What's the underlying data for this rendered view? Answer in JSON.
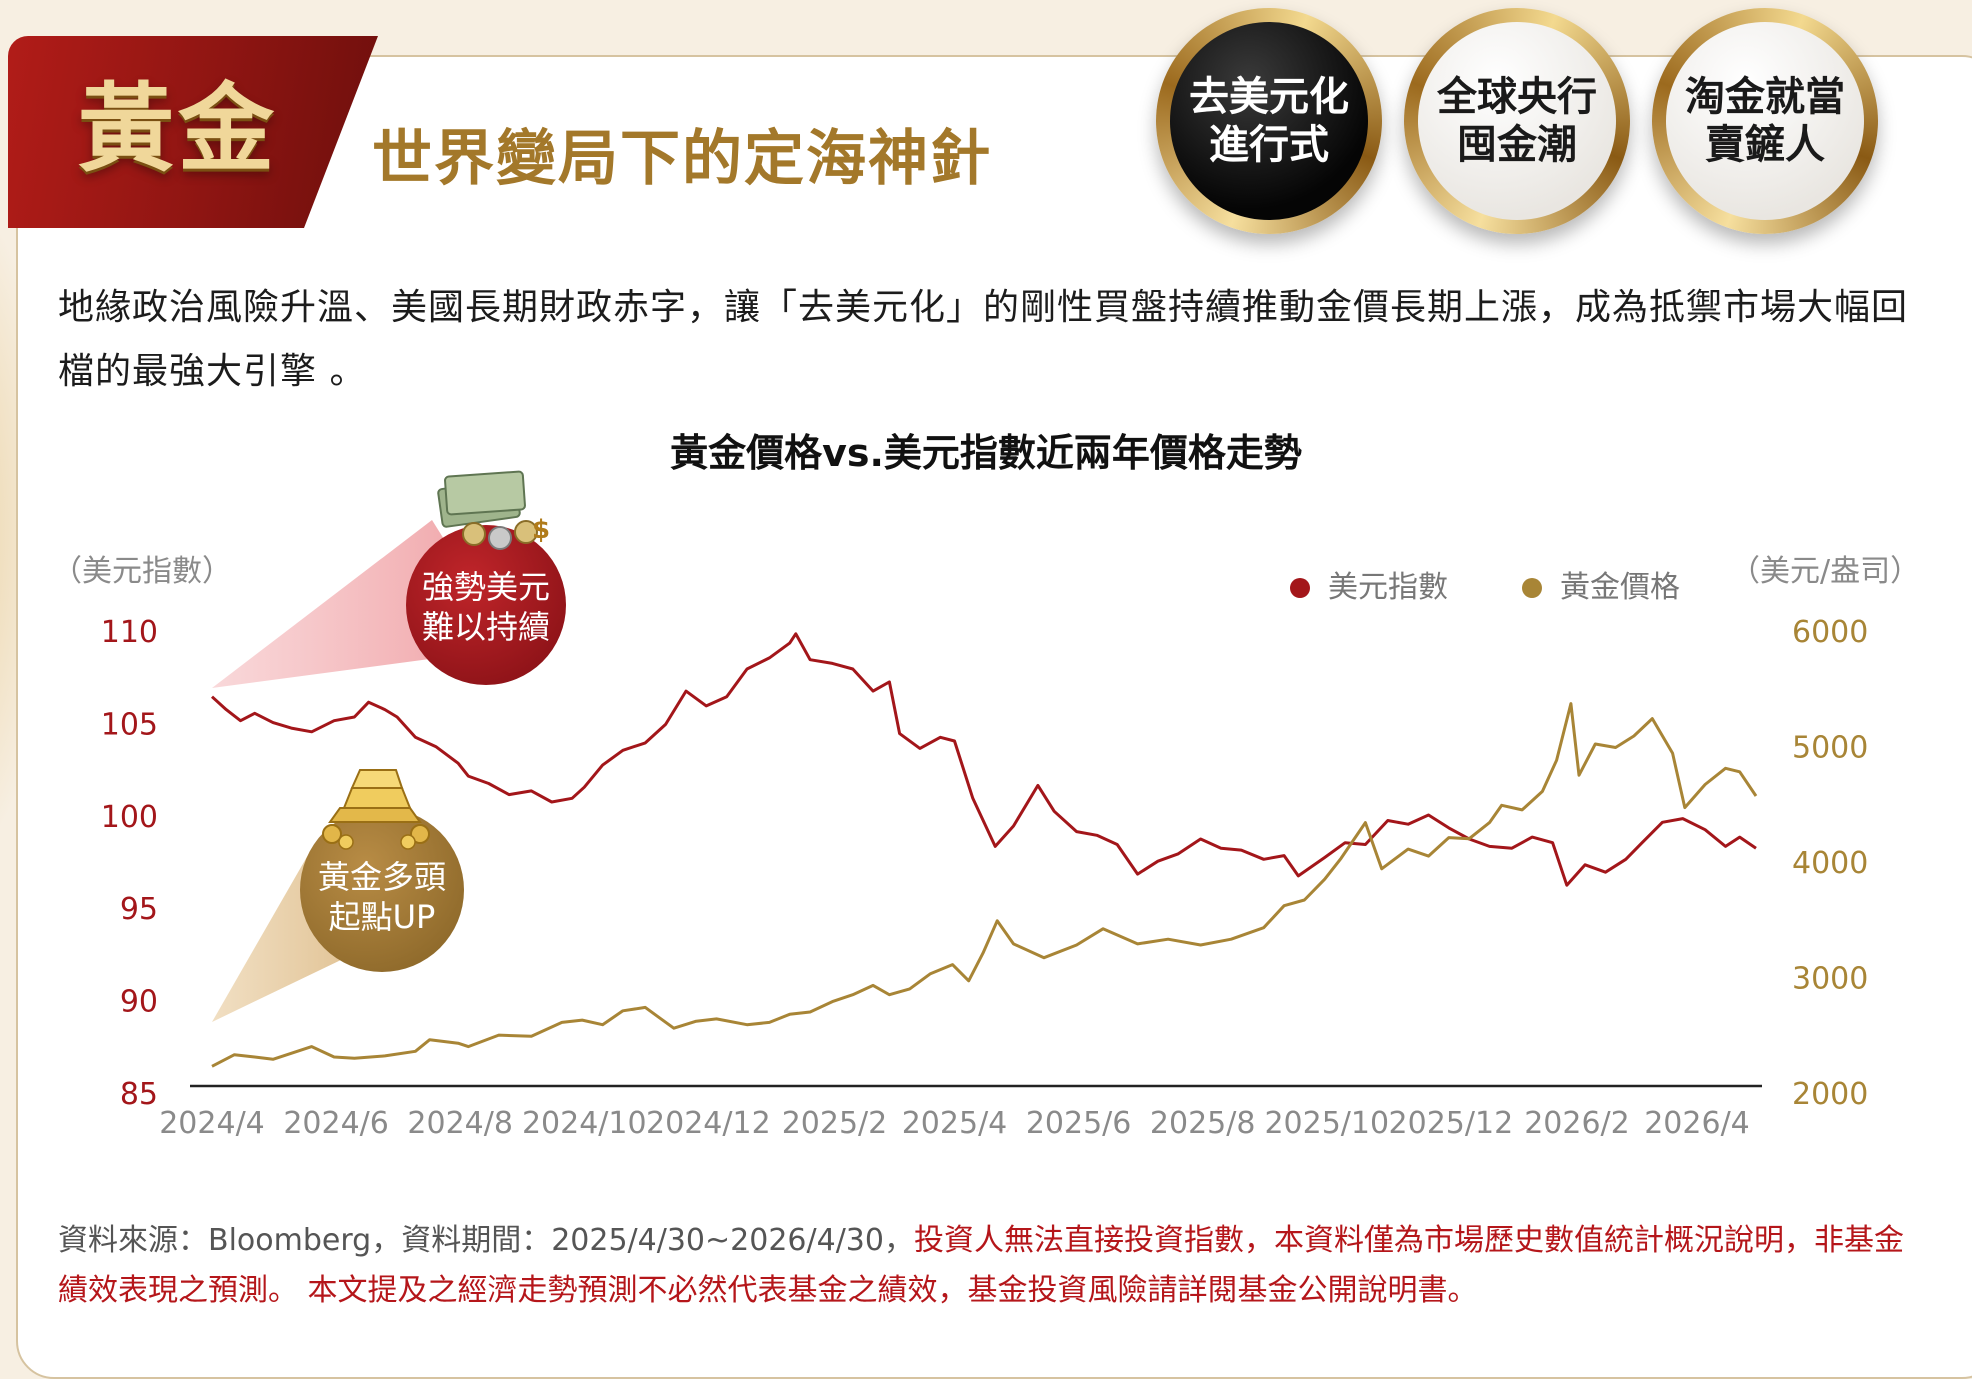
{
  "header": {
    "tab_title": "黃金",
    "subtitle": "世界變局下的定海神針"
  },
  "badges": [
    {
      "label_line1": "去美元化",
      "label_line2": "進行式",
      "active": true
    },
    {
      "label_line1": "全球央行",
      "label_line2": "囤金潮",
      "active": false
    },
    {
      "label_line1": "淘金就當",
      "label_line2": "賣鏟人",
      "active": false
    }
  ],
  "intro_text": "地緣政治風險升溫、美國長期財政赤字，讓「去美元化」的剛性買盤持續推動金價長期上漲，成為抵禦市場大幅回檔的最強大引擎 。",
  "callouts": [
    {
      "line1": "強勢美元",
      "line2": "難以持續",
      "icon": "cash-stack-icon"
    },
    {
      "line1": "黃金多頭",
      "line2": "起點UP",
      "icon": "gold-bars-icon"
    }
  ],
  "footnote": {
    "source": "資料來源：Bloomberg，資料期間：2025/4/30~2026/4/30，",
    "warning": "投資人無法直接投資指數，本資料僅為市場歷史數值統計概況說明，非基金績效表現之預測。 本文提及之經濟走勢預測不必然代表基金之績效，基金投資風險請詳閱基金公開說明書。"
  },
  "colors": {
    "usd_line": "#a3161a",
    "gold_line": "#a88536",
    "tab_red": "#9b1815",
    "subtitle_gold": "#a3782a"
  },
  "chart_data": {
    "type": "line",
    "title": "黃金價格vs.美元指數近兩年價格走勢",
    "left_axis_label": "（美元指數）",
    "right_axis_label": "（美元/盎司）",
    "left_axis": {
      "ticks": [
        "110",
        "105",
        "100",
        "95",
        "90",
        "85"
      ],
      "ylim": [
        85,
        110
      ]
    },
    "right_axis": {
      "ticks": [
        "6000",
        "5000",
        "4000",
        "3000",
        "2000"
      ],
      "ylim": [
        2000,
        6000
      ]
    },
    "x_ticks": [
      "2024/4",
      "2024/6",
      "2024/8",
      "2024/10",
      "2024/12",
      "2025/2",
      "2025/4",
      "2025/6",
      "2025/8",
      "2025/10",
      "2025/12",
      "2026/2",
      "2026/4"
    ],
    "grid": false,
    "legend_position": "top-right",
    "series": [
      {
        "name": "美元指數",
        "axis": "left",
        "points": [
          [
            "2024-04-01",
            106.5
          ],
          [
            "2024-04-08",
            105.8
          ],
          [
            "2024-04-15",
            105.2
          ],
          [
            "2024-04-22",
            105.6
          ],
          [
            "2024-05-01",
            105.1
          ],
          [
            "2024-05-10",
            104.8
          ],
          [
            "2024-05-20",
            104.6
          ],
          [
            "2024-05-31",
            105.2
          ],
          [
            "2024-06-10",
            105.4
          ],
          [
            "2024-06-17",
            106.2
          ],
          [
            "2024-06-25",
            105.8
          ],
          [
            "2024-07-01",
            105.4
          ],
          [
            "2024-07-10",
            104.3
          ],
          [
            "2024-07-20",
            103.8
          ],
          [
            "2024-07-31",
            102.9
          ],
          [
            "2024-08-05",
            102.2
          ],
          [
            "2024-08-15",
            101.8
          ],
          [
            "2024-08-25",
            101.2
          ],
          [
            "2024-09-05",
            101.4
          ],
          [
            "2024-09-15",
            100.8
          ],
          [
            "2024-09-25",
            101.0
          ],
          [
            "2024-10-01",
            101.6
          ],
          [
            "2024-10-10",
            102.8
          ],
          [
            "2024-10-20",
            103.6
          ],
          [
            "2024-10-31",
            104.0
          ],
          [
            "2024-11-10",
            105.0
          ],
          [
            "2024-11-20",
            106.8
          ],
          [
            "2024-11-30",
            106.0
          ],
          [
            "2024-12-10",
            106.5
          ],
          [
            "2024-12-20",
            108.0
          ],
          [
            "2024-12-31",
            108.6
          ],
          [
            "2025-01-10",
            109.4
          ],
          [
            "2025-01-13",
            109.9
          ],
          [
            "2025-01-20",
            108.5
          ],
          [
            "2025-01-31",
            108.3
          ],
          [
            "2025-02-10",
            108.0
          ],
          [
            "2025-02-20",
            106.8
          ],
          [
            "2025-02-28",
            107.3
          ],
          [
            "2025-03-05",
            104.5
          ],
          [
            "2025-03-15",
            103.7
          ],
          [
            "2025-03-25",
            104.3
          ],
          [
            "2025-04-01",
            104.1
          ],
          [
            "2025-04-10",
            101.0
          ],
          [
            "2025-04-21",
            98.4
          ],
          [
            "2025-04-30",
            99.5
          ],
          [
            "2025-05-12",
            101.7
          ],
          [
            "2025-05-20",
            100.3
          ],
          [
            "2025-05-31",
            99.2
          ],
          [
            "2025-06-10",
            99.0
          ],
          [
            "2025-06-20",
            98.5
          ],
          [
            "2025-06-30",
            96.9
          ],
          [
            "2025-07-10",
            97.6
          ],
          [
            "2025-07-20",
            98.0
          ],
          [
            "2025-07-31",
            98.8
          ],
          [
            "2025-08-10",
            98.3
          ],
          [
            "2025-08-20",
            98.2
          ],
          [
            "2025-08-31",
            97.7
          ],
          [
            "2025-09-10",
            97.9
          ],
          [
            "2025-09-17",
            96.8
          ],
          [
            "2025-09-30",
            97.8
          ],
          [
            "2025-10-10",
            98.6
          ],
          [
            "2025-10-20",
            98.5
          ],
          [
            "2025-10-31",
            99.8
          ],
          [
            "2025-11-10",
            99.6
          ],
          [
            "2025-11-20",
            100.1
          ],
          [
            "2025-11-30",
            99.4
          ],
          [
            "2025-12-10",
            98.8
          ],
          [
            "2025-12-20",
            98.4
          ],
          [
            "2025-12-31",
            98.3
          ],
          [
            "2026-01-10",
            98.9
          ],
          [
            "2026-01-20",
            98.6
          ],
          [
            "2026-01-27",
            96.3
          ],
          [
            "2026-02-05",
            97.4
          ],
          [
            "2026-02-15",
            97.0
          ],
          [
            "2026-02-25",
            97.7
          ],
          [
            "2026-03-05",
            98.6
          ],
          [
            "2026-03-15",
            99.7
          ],
          [
            "2026-03-25",
            99.9
          ],
          [
            "2026-04-05",
            99.3
          ],
          [
            "2026-04-15",
            98.4
          ],
          [
            "2026-04-22",
            98.9
          ],
          [
            "2026-04-30",
            98.3
          ]
        ]
      },
      {
        "name": "黃金價格",
        "axis": "right",
        "points": [
          [
            "2024-04-01",
            2240
          ],
          [
            "2024-04-12",
            2340
          ],
          [
            "2024-04-22",
            2320
          ],
          [
            "2024-05-01",
            2300
          ],
          [
            "2024-05-20",
            2410
          ],
          [
            "2024-05-31",
            2320
          ],
          [
            "2024-06-10",
            2310
          ],
          [
            "2024-06-25",
            2330
          ],
          [
            "2024-07-10",
            2370
          ],
          [
            "2024-07-17",
            2470
          ],
          [
            "2024-07-31",
            2440
          ],
          [
            "2024-08-05",
            2410
          ],
          [
            "2024-08-20",
            2510
          ],
          [
            "2024-09-05",
            2500
          ],
          [
            "2024-09-20",
            2620
          ],
          [
            "2024-09-30",
            2640
          ],
          [
            "2024-10-10",
            2600
          ],
          [
            "2024-10-20",
            2720
          ],
          [
            "2024-10-31",
            2750
          ],
          [
            "2024-11-07",
            2660
          ],
          [
            "2024-11-14",
            2570
          ],
          [
            "2024-11-25",
            2630
          ],
          [
            "2024-12-05",
            2650
          ],
          [
            "2024-12-20",
            2600
          ],
          [
            "2024-12-31",
            2620
          ],
          [
            "2025-01-10",
            2690
          ],
          [
            "2025-01-20",
            2710
          ],
          [
            "2025-01-31",
            2800
          ],
          [
            "2025-02-10",
            2860
          ],
          [
            "2025-02-20",
            2940
          ],
          [
            "2025-02-28",
            2860
          ],
          [
            "2025-03-10",
            2910
          ],
          [
            "2025-03-20",
            3040
          ],
          [
            "2025-03-31",
            3120
          ],
          [
            "2025-04-08",
            2980
          ],
          [
            "2025-04-15",
            3220
          ],
          [
            "2025-04-22",
            3500
          ],
          [
            "2025-04-30",
            3300
          ],
          [
            "2025-05-15",
            3180
          ],
          [
            "2025-05-31",
            3290
          ],
          [
            "2025-06-13",
            3430
          ],
          [
            "2025-06-30",
            3300
          ],
          [
            "2025-07-15",
            3340
          ],
          [
            "2025-07-31",
            3290
          ],
          [
            "2025-08-15",
            3340
          ],
          [
            "2025-08-31",
            3440
          ],
          [
            "2025-09-10",
            3630
          ],
          [
            "2025-09-20",
            3680
          ],
          [
            "2025-09-30",
            3860
          ],
          [
            "2025-10-08",
            4040
          ],
          [
            "2025-10-20",
            4350
          ],
          [
            "2025-10-28",
            3950
          ],
          [
            "2025-11-10",
            4120
          ],
          [
            "2025-11-20",
            4060
          ],
          [
            "2025-11-30",
            4220
          ],
          [
            "2025-12-10",
            4210
          ],
          [
            "2025-12-20",
            4350
          ],
          [
            "2025-12-26",
            4500
          ],
          [
            "2026-01-05",
            4460
          ],
          [
            "2026-01-15",
            4620
          ],
          [
            "2026-01-22",
            4890
          ],
          [
            "2026-01-29",
            5380
          ],
          [
            "2026-02-02",
            4760
          ],
          [
            "2026-02-10",
            5030
          ],
          [
            "2026-02-20",
            5000
          ],
          [
            "2026-03-01",
            5100
          ],
          [
            "2026-03-10",
            5250
          ],
          [
            "2026-03-20",
            4950
          ],
          [
            "2026-03-26",
            4480
          ],
          [
            "2026-04-05",
            4680
          ],
          [
            "2026-04-15",
            4820
          ],
          [
            "2026-04-22",
            4790
          ],
          [
            "2026-04-30",
            4580
          ]
        ]
      }
    ]
  }
}
